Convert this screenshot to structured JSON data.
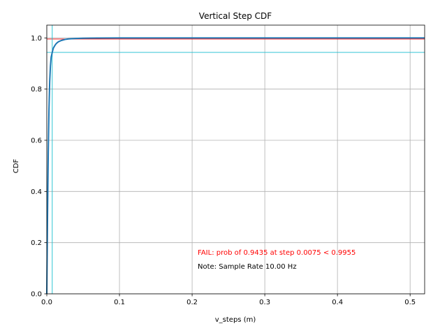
{
  "chart_data": {
    "type": "line",
    "title": "Vertical Step CDF",
    "xlabel": "v_steps (m)",
    "ylabel": "CDF",
    "xlim": [
      0,
      0.52
    ],
    "ylim": [
      0,
      1.05
    ],
    "xticks": [
      0.0,
      0.1,
      0.2,
      0.3,
      0.4,
      0.5
    ],
    "xtick_labels": [
      "0.0",
      "0.1",
      "0.2",
      "0.3",
      "0.4",
      "0.5"
    ],
    "yticks": [
      0.0,
      0.2,
      0.4,
      0.6,
      0.8,
      1.0
    ],
    "ytick_labels": [
      "0.0",
      "0.2",
      "0.4",
      "0.6",
      "0.8",
      "1.0"
    ],
    "grid": true,
    "series": [
      {
        "color": "#1f77b4",
        "x": [
          0.0,
          0.001,
          0.002,
          0.003,
          0.004,
          0.005,
          0.006,
          0.0075,
          0.009,
          0.011,
          0.013,
          0.016,
          0.02,
          0.025,
          0.03,
          0.04,
          0.05,
          0.07,
          0.1,
          0.2,
          0.3,
          0.4,
          0.52
        ],
        "y": [
          0.0,
          0.3,
          0.55,
          0.72,
          0.83,
          0.89,
          0.925,
          0.9435,
          0.96,
          0.97,
          0.978,
          0.985,
          0.99,
          0.994,
          0.996,
          0.998,
          0.999,
          0.9995,
          1.0,
          1.0,
          1.0,
          1.0,
          1.0
        ]
      }
    ],
    "reference_lines": [
      {
        "orientation": "horizontal",
        "value": 0.9955,
        "color": "#ff0000"
      },
      {
        "orientation": "horizontal",
        "value": 0.9435,
        "color": "#17becf"
      },
      {
        "orientation": "vertical",
        "value": 0.0075,
        "color": "#17becf"
      }
    ],
    "annotations": [
      {
        "text": "FAIL: prob of 0.9435 at step 0.0075 < 0.9955",
        "color": "#ff0000"
      },
      {
        "text": "Note: Sample Rate 10.00 Hz",
        "color": "#000000"
      }
    ]
  }
}
